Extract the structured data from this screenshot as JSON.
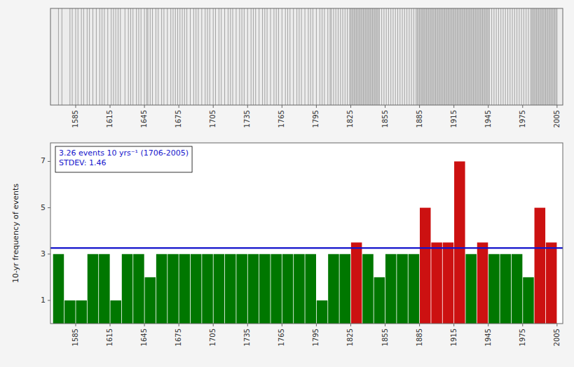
{
  "chart_data": [
    {
      "type": "event",
      "x": [
        1570,
        1573,
        1580,
        1582,
        1585,
        1587,
        1590,
        1592,
        1595,
        1597,
        1600,
        1603,
        1606,
        1608,
        1610,
        1613,
        1616,
        1618,
        1620,
        1622,
        1624,
        1628,
        1631,
        1633,
        1635,
        1638,
        1640,
        1642,
        1645,
        1647,
        1648,
        1650,
        1652,
        1655,
        1657,
        1660,
        1662,
        1665,
        1668,
        1670,
        1672,
        1674,
        1676,
        1678,
        1680,
        1682,
        1685,
        1688,
        1690,
        1692,
        1695,
        1698,
        1700,
        1702,
        1705,
        1707,
        1710,
        1712,
        1715,
        1718,
        1720,
        1722,
        1725,
        1728,
        1730,
        1732,
        1735,
        1738,
        1740,
        1742,
        1745,
        1748,
        1750,
        1752,
        1755,
        1758,
        1760,
        1762,
        1765,
        1768,
        1770,
        1772,
        1775,
        1778,
        1780,
        1782,
        1785,
        1788,
        1790,
        1792,
        1795,
        1798,
        1800,
        1802,
        1805,
        1807,
        1808,
        1810,
        1812,
        1814,
        1816,
        1818,
        1820,
        1822,
        1824,
        1825,
        1826,
        1827,
        1828,
        1829,
        1830,
        1831,
        1832,
        1833,
        1834,
        1835,
        1836,
        1837,
        1838,
        1839,
        1840,
        1841,
        1842,
        1843,
        1844,
        1845,
        1846,
        1847,
        1848,
        1849,
        1850,
        1852,
        1854,
        1856,
        1858,
        1860,
        1862,
        1864,
        1866,
        1868,
        1870,
        1872,
        1874,
        1876,
        1878,
        1880,
        1882,
        1883,
        1884,
        1885,
        1886,
        1887,
        1888,
        1889,
        1890,
        1891,
        1892,
        1893,
        1894,
        1895,
        1896,
        1897,
        1898,
        1899,
        1900,
        1901,
        1902,
        1903,
        1904,
        1905,
        1906,
        1907,
        1908,
        1909,
        1910,
        1911,
        1912,
        1913,
        1914,
        1915,
        1916,
        1917,
        1918,
        1919,
        1920,
        1921,
        1922,
        1923,
        1924,
        1925,
        1926,
        1927,
        1928,
        1929,
        1930,
        1931,
        1932,
        1933,
        1934,
        1935,
        1936,
        1937,
        1938,
        1939,
        1940,
        1941,
        1942,
        1943,
        1944,
        1945,
        1946,
        1948,
        1950,
        1952,
        1954,
        1956,
        1958,
        1960,
        1962,
        1964,
        1966,
        1968,
        1970,
        1972,
        1974,
        1976,
        1978,
        1980,
        1982,
        1983,
        1984,
        1985,
        1986,
        1987,
        1988,
        1989,
        1990,
        1991,
        1992,
        1993,
        1994,
        1995,
        1996,
        1997,
        1998,
        1999,
        2000,
        2001,
        2002,
        2003,
        2004,
        2005
      ],
      "color": "#909090",
      "xlim": [
        1563,
        2010
      ],
      "xticks": [
        1585,
        1615,
        1645,
        1675,
        1705,
        1735,
        1765,
        1795,
        1825,
        1855,
        1885,
        1915,
        1945,
        1975,
        2005
      ],
      "tick_labels": "x",
      "grid": false
    },
    {
      "type": "bar",
      "x": [
        1570,
        1580,
        1590,
        1600,
        1610,
        1620,
        1630,
        1640,
        1650,
        1660,
        1670,
        1680,
        1690,
        1700,
        1710,
        1720,
        1730,
        1740,
        1750,
        1760,
        1770,
        1780,
        1790,
        1800,
        1810,
        1820,
        1830,
        1840,
        1850,
        1860,
        1870,
        1880,
        1890,
        1900,
        1910,
        1920,
        1930,
        1940,
        1950,
        1960,
        1970,
        1980,
        1990,
        2000
      ],
      "values": [
        3,
        1,
        1,
        3,
        3,
        1,
        3,
        3,
        2,
        3,
        3,
        3,
        3,
        3,
        3,
        3,
        3,
        3,
        3,
        3,
        3,
        3,
        3,
        1,
        3,
        3,
        3.5,
        3,
        2,
        3,
        3,
        3,
        5,
        3.5,
        3.5,
        7,
        3,
        3.5,
        3,
        3,
        3,
        2,
        5,
        3.5
      ],
      "colors": [
        "#007700",
        "#007700",
        "#007700",
        "#007700",
        "#007700",
        "#007700",
        "#007700",
        "#007700",
        "#007700",
        "#007700",
        "#007700",
        "#007700",
        "#007700",
        "#007700",
        "#007700",
        "#007700",
        "#007700",
        "#007700",
        "#007700",
        "#007700",
        "#007700",
        "#007700",
        "#007700",
        "#007700",
        "#007700",
        "#007700",
        "#CC1111",
        "#007700",
        "#007700",
        "#007700",
        "#007700",
        "#007700",
        "#CC1111",
        "#CC1111",
        "#CC1111",
        "#CC1111",
        "#007700",
        "#CC1111",
        "#007700",
        "#007700",
        "#007700",
        "#007700",
        "#CC1111",
        "#CC1111"
      ],
      "reference_line": {
        "value": 3.26,
        "color": "#1414CC"
      },
      "annotations": [
        "3.26 events 10 yrs⁻¹ (1706-2005)",
        "STDEV: 1.46"
      ],
      "y_label": "10-yr frequency of events",
      "xlim": [
        1563,
        2010
      ],
      "xticks": [
        1585,
        1615,
        1645,
        1675,
        1705,
        1735,
        1765,
        1795,
        1825,
        1855,
        1885,
        1915,
        1945,
        1975,
        2005
      ],
      "ylim": [
        0,
        7.8
      ],
      "yticks": [
        1,
        3,
        5,
        7
      ],
      "grid": false
    }
  ]
}
